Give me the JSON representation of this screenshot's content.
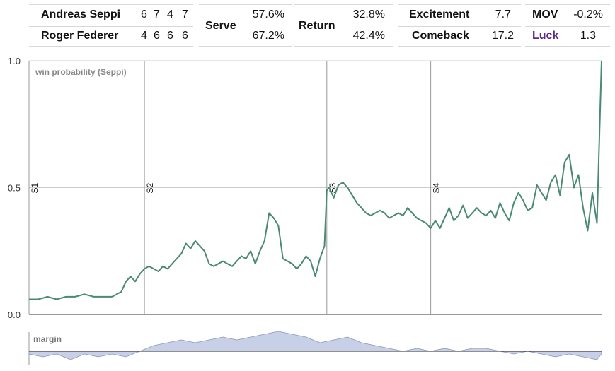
{
  "scoreboard": {
    "players": [
      {
        "name": "Andreas Seppi",
        "sets": [
          "6",
          "7",
          "4",
          "7"
        ]
      },
      {
        "name": "Roger Federer",
        "sets": [
          "4",
          "6",
          "6",
          "6"
        ]
      }
    ],
    "serve": {
      "label": "Serve",
      "values": [
        "57.6%",
        "67.2%"
      ]
    },
    "return": {
      "label": "Return",
      "values": [
        "32.8%",
        "42.4%"
      ]
    },
    "excitement": {
      "label": "Excitement",
      "value": "7.7"
    },
    "comeback": {
      "label": "Comeback",
      "value": "17.2"
    },
    "mov": {
      "label": "MOV",
      "value": "-0.2%"
    },
    "luck": {
      "label": "Luck",
      "value": "1.3",
      "color": "#5b2a8c"
    }
  },
  "chart_data": [
    {
      "type": "line",
      "label": "win probability (Seppi)",
      "ylim": [
        0,
        1
      ],
      "y_ticks": [
        "0.0",
        "0.5",
        "1.0"
      ],
      "x_range": [
        0,
        248
      ],
      "set_markers": [
        {
          "label": "S1",
          "x": 0
        },
        {
          "label": "S2",
          "x": 50
        },
        {
          "label": "S3",
          "x": 129
        },
        {
          "label": "S4",
          "x": 174
        }
      ],
      "line_color": "#4a8a72",
      "x": [
        0,
        4,
        8,
        12,
        16,
        20,
        24,
        28,
        32,
        36,
        40,
        42,
        44,
        46,
        48,
        50,
        52,
        54,
        56,
        58,
        60,
        62,
        64,
        66,
        68,
        70,
        72,
        74,
        76,
        78,
        80,
        82,
        84,
        86,
        88,
        90,
        92,
        94,
        96,
        98,
        100,
        102,
        104,
        106,
        108,
        110,
        112,
        114,
        116,
        118,
        120,
        122,
        124,
        126,
        128,
        129,
        130,
        132,
        134,
        136,
        138,
        140,
        142,
        144,
        146,
        148,
        150,
        152,
        154,
        156,
        158,
        160,
        162,
        164,
        166,
        168,
        170,
        172,
        174,
        176,
        178,
        180,
        182,
        184,
        186,
        188,
        190,
        192,
        194,
        196,
        198,
        200,
        202,
        204,
        206,
        208,
        210,
        212,
        214,
        216,
        218,
        220,
        222,
        224,
        226,
        228,
        230,
        232,
        234,
        236,
        238,
        240,
        242,
        244,
        246,
        248
      ],
      "y": [
        0.06,
        0.06,
        0.07,
        0.06,
        0.07,
        0.07,
        0.08,
        0.07,
        0.07,
        0.07,
        0.09,
        0.13,
        0.15,
        0.13,
        0.16,
        0.18,
        0.19,
        0.18,
        0.17,
        0.19,
        0.18,
        0.2,
        0.22,
        0.24,
        0.28,
        0.26,
        0.29,
        0.27,
        0.25,
        0.2,
        0.19,
        0.2,
        0.21,
        0.2,
        0.19,
        0.21,
        0.23,
        0.22,
        0.25,
        0.2,
        0.25,
        0.29,
        0.4,
        0.38,
        0.35,
        0.22,
        0.21,
        0.2,
        0.18,
        0.2,
        0.23,
        0.21,
        0.15,
        0.22,
        0.27,
        0.49,
        0.5,
        0.46,
        0.51,
        0.52,
        0.5,
        0.47,
        0.44,
        0.42,
        0.4,
        0.39,
        0.4,
        0.41,
        0.4,
        0.38,
        0.39,
        0.4,
        0.39,
        0.42,
        0.4,
        0.38,
        0.37,
        0.36,
        0.34,
        0.37,
        0.34,
        0.38,
        0.42,
        0.37,
        0.39,
        0.43,
        0.38,
        0.4,
        0.42,
        0.4,
        0.39,
        0.41,
        0.38,
        0.44,
        0.4,
        0.37,
        0.44,
        0.48,
        0.45,
        0.41,
        0.42,
        0.51,
        0.48,
        0.45,
        0.52,
        0.55,
        0.47,
        0.6,
        0.63,
        0.5,
        0.55,
        0.42,
        0.33,
        0.48,
        0.36,
        1.0
      ]
    },
    {
      "type": "area",
      "label": "margin",
      "baseline": 0,
      "fill_color": "#c8d0e8",
      "stroke_color": "#8a96bb",
      "x": [
        0,
        6,
        12,
        18,
        24,
        30,
        36,
        42,
        48,
        54,
        60,
        66,
        72,
        78,
        84,
        90,
        96,
        102,
        108,
        114,
        120,
        126,
        132,
        138,
        144,
        150,
        156,
        162,
        168,
        174,
        180,
        186,
        192,
        198,
        204,
        210,
        216,
        222,
        228,
        234,
        240,
        246,
        248
      ],
      "y": [
        -1,
        -2,
        -1,
        -3,
        -1,
        -2,
        -1,
        -2,
        0,
        2,
        3,
        4,
        3,
        4,
        5,
        4,
        5,
        6,
        7,
        6,
        5,
        3,
        4,
        5,
        3,
        2,
        1,
        0,
        1,
        0,
        1,
        0,
        1,
        1,
        0,
        -1,
        0,
        -1,
        -2,
        -1,
        -2,
        -3,
        -1
      ]
    }
  ]
}
